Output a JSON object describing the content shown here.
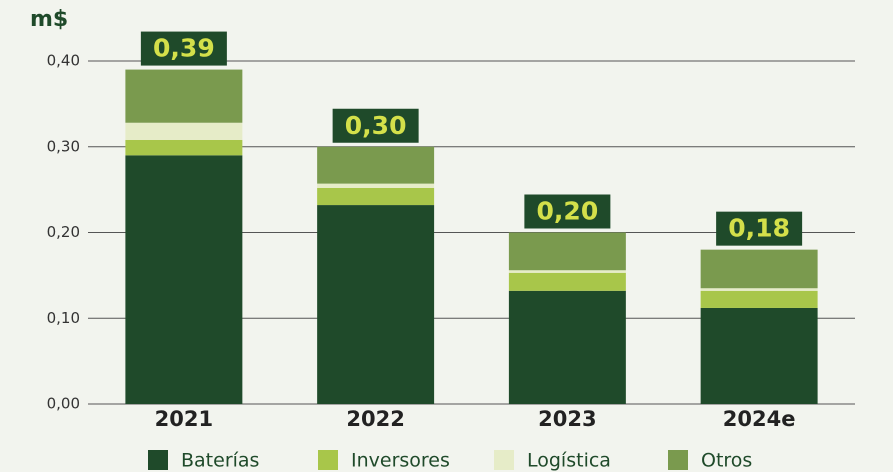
{
  "chart_data": {
    "type": "stacked_bar",
    "y_label": "m$",
    "categories": [
      "2021",
      "2022",
      "2023",
      "2024e"
    ],
    "series": [
      {
        "name": "Baterías",
        "color": "#1f4a2a",
        "values": [
          0.29,
          0.232,
          0.132,
          0.112
        ]
      },
      {
        "name": "Inversores",
        "color": "#a8c64a",
        "values": [
          0.018,
          0.02,
          0.021,
          0.02
        ]
      },
      {
        "name": "Logística",
        "color": "#e6ecc8",
        "values": [
          0.02,
          0.005,
          0.003,
          0.003
        ]
      },
      {
        "name": "Otros",
        "color": "#7a9a4e",
        "values": [
          0.062,
          0.043,
          0.044,
          0.045
        ]
      }
    ],
    "totals": [
      0.39,
      0.3,
      0.2,
      0.18
    ],
    "total_labels": [
      "0,39",
      "0,30",
      "0,20",
      "0,18"
    ],
    "ylim": [
      0,
      0.4
    ],
    "yticks": [
      {
        "value": 0,
        "label": "0,00"
      },
      {
        "value": 0.1,
        "label": "0,10"
      },
      {
        "value": 0.2,
        "label": "0,20"
      },
      {
        "value": 0.3,
        "label": "0,30"
      },
      {
        "value": 0.4,
        "label": "0,40"
      }
    ],
    "grid": true
  }
}
